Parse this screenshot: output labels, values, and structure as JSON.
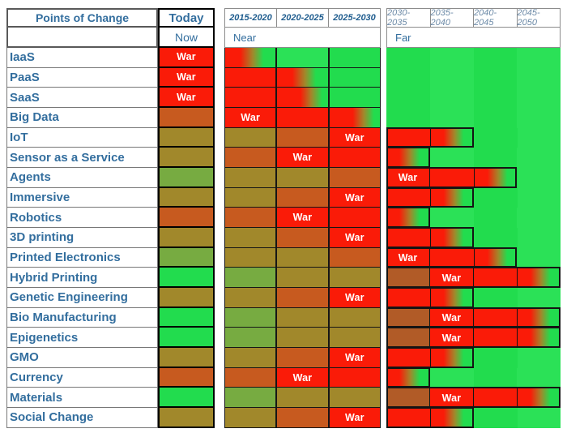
{
  "palette": {
    "red": "#FA1B08",
    "orange": "#C75A1F",
    "olive": "#A1882B",
    "green_olive": "#77AB41",
    "green": "#22DC4E",
    "green2": "#2BE157",
    "brown": "#B15B27",
    "label_blue": "#336E9E",
    "near_year_blue": "#1E5C8E",
    "far_year_blue": "#6D8BA8",
    "war_text": "#FFFFFF"
  },
  "header": {
    "points_of_change": "Points of Change",
    "today": "Today",
    "now": "Now",
    "near_label": "Near",
    "far_label": "Far",
    "near_years": [
      "2015-2020",
      "2020-2025",
      "2025-2030"
    ],
    "far_years": [
      "2030-2035",
      "2035-2040",
      "2040-2045",
      "2045-2050"
    ]
  },
  "chart_data": {
    "type": "heatmap",
    "title": "Points of Change",
    "war_label": "War",
    "columns": [
      "Today (Now)",
      "2015-2020",
      "2020-2025",
      "2025-2030",
      "2030-2035",
      "2035-2040",
      "2040-2045",
      "2045-2050"
    ],
    "column_groups": {
      "near": [
        "2015-2020",
        "2020-2025",
        "2025-2030"
      ],
      "far": [
        "2030-2035",
        "2035-2040",
        "2040-2045",
        "2045-2050"
      ]
    },
    "cell_color_legend": "red=conflict/war period, orange/olive=transition, green=settled; grad=red-to-green gradient; box=highlighted far-period conflict window",
    "rows": [
      {
        "label": "IaaS",
        "today": "war:red",
        "near": [
          "grad",
          "green",
          "green"
        ],
        "far": [
          "green",
          "green",
          "green",
          "green"
        ],
        "box": null
      },
      {
        "label": "PaaS",
        "today": "war:red",
        "near": [
          "red",
          "grad",
          "green"
        ],
        "far": [
          "green",
          "green",
          "green",
          "green"
        ],
        "box": null
      },
      {
        "label": "SaaS",
        "today": "war:red",
        "near": [
          "red",
          "grad_late",
          "green"
        ],
        "far": [
          "green",
          "green",
          "green",
          "green"
        ],
        "box": null
      },
      {
        "label": "Big Data",
        "today": "orange",
        "near": [
          "war:red",
          "red",
          "grad_late"
        ],
        "far": [
          "green",
          "green",
          "green",
          "green"
        ],
        "box": null
      },
      {
        "label": "IoT",
        "today": "olive",
        "near": [
          "olive",
          "orange",
          "war:red"
        ],
        "far": [
          "red",
          "grad",
          "green",
          "green"
        ],
        "box": [
          0,
          1
        ]
      },
      {
        "label": "Sensor as a Service",
        "today": "olive",
        "near": [
          "orange",
          "war:red",
          "red"
        ],
        "far": [
          "grad",
          "green",
          "green",
          "green"
        ],
        "box": [
          0,
          0
        ]
      },
      {
        "label": "Agents",
        "today": "green_olive",
        "near": [
          "olive",
          "olive",
          "orange"
        ],
        "far": [
          "war:red",
          "red",
          "grad",
          "green"
        ],
        "box": [
          0,
          2
        ]
      },
      {
        "label": "Immersive",
        "today": "olive",
        "near": [
          "olive",
          "orange",
          "war:red"
        ],
        "far": [
          "red",
          "grad",
          "green",
          "green"
        ],
        "box": [
          0,
          1
        ]
      },
      {
        "label": "Robotics",
        "today": "orange",
        "near": [
          "orange",
          "war:red",
          "red"
        ],
        "far": [
          "grad",
          "green",
          "green",
          "green"
        ],
        "box": [
          0,
          0
        ]
      },
      {
        "label": "3D printing",
        "today": "olive",
        "near": [
          "olive",
          "orange",
          "war:red"
        ],
        "far": [
          "red",
          "grad",
          "green",
          "green"
        ],
        "box": [
          0,
          1
        ]
      },
      {
        "label": "Printed Electronics",
        "today": "green_olive",
        "near": [
          "olive",
          "olive",
          "orange"
        ],
        "far": [
          "war:red",
          "red",
          "grad",
          "green"
        ],
        "box": [
          0,
          2
        ]
      },
      {
        "label": "Hybrid Printing",
        "today": "green",
        "near": [
          "green_olive",
          "olive",
          "olive"
        ],
        "far": [
          "brown",
          "war:red",
          "red",
          "grad"
        ],
        "box": [
          0,
          3
        ]
      },
      {
        "label": "Genetic Engineering",
        "today": "olive",
        "near": [
          "olive",
          "orange",
          "war:red"
        ],
        "far": [
          "red",
          "grad",
          "green",
          "green"
        ],
        "box": [
          0,
          1
        ]
      },
      {
        "label": "Bio Manufacturing",
        "today": "green",
        "near": [
          "green_olive",
          "olive",
          "olive"
        ],
        "far": [
          "brown",
          "war:red",
          "red",
          "grad"
        ],
        "box": [
          0,
          3
        ]
      },
      {
        "label": "Epigenetics",
        "today": "green",
        "near": [
          "green_olive",
          "olive",
          "olive"
        ],
        "far": [
          "brown",
          "war:red",
          "red",
          "grad"
        ],
        "box": [
          0,
          3
        ]
      },
      {
        "label": "GMO",
        "today": "olive",
        "near": [
          "olive",
          "orange",
          "war:red"
        ],
        "far": [
          "red",
          "grad",
          "green",
          "green"
        ],
        "box": [
          0,
          1
        ]
      },
      {
        "label": "Currency",
        "today": "orange",
        "near": [
          "orange",
          "war:red",
          "red"
        ],
        "far": [
          "grad",
          "green",
          "green",
          "green"
        ],
        "box": [
          0,
          0
        ]
      },
      {
        "label": "Materials",
        "today": "green",
        "near": [
          "green_olive",
          "olive",
          "olive"
        ],
        "far": [
          "brown",
          "war:red",
          "red",
          "grad"
        ],
        "box": [
          0,
          3
        ]
      },
      {
        "label": "Social Change",
        "today": "olive",
        "near": [
          "olive",
          "orange",
          "war:red"
        ],
        "far": [
          "red",
          "grad",
          "green",
          "green"
        ],
        "box": [
          0,
          1
        ]
      }
    ]
  }
}
